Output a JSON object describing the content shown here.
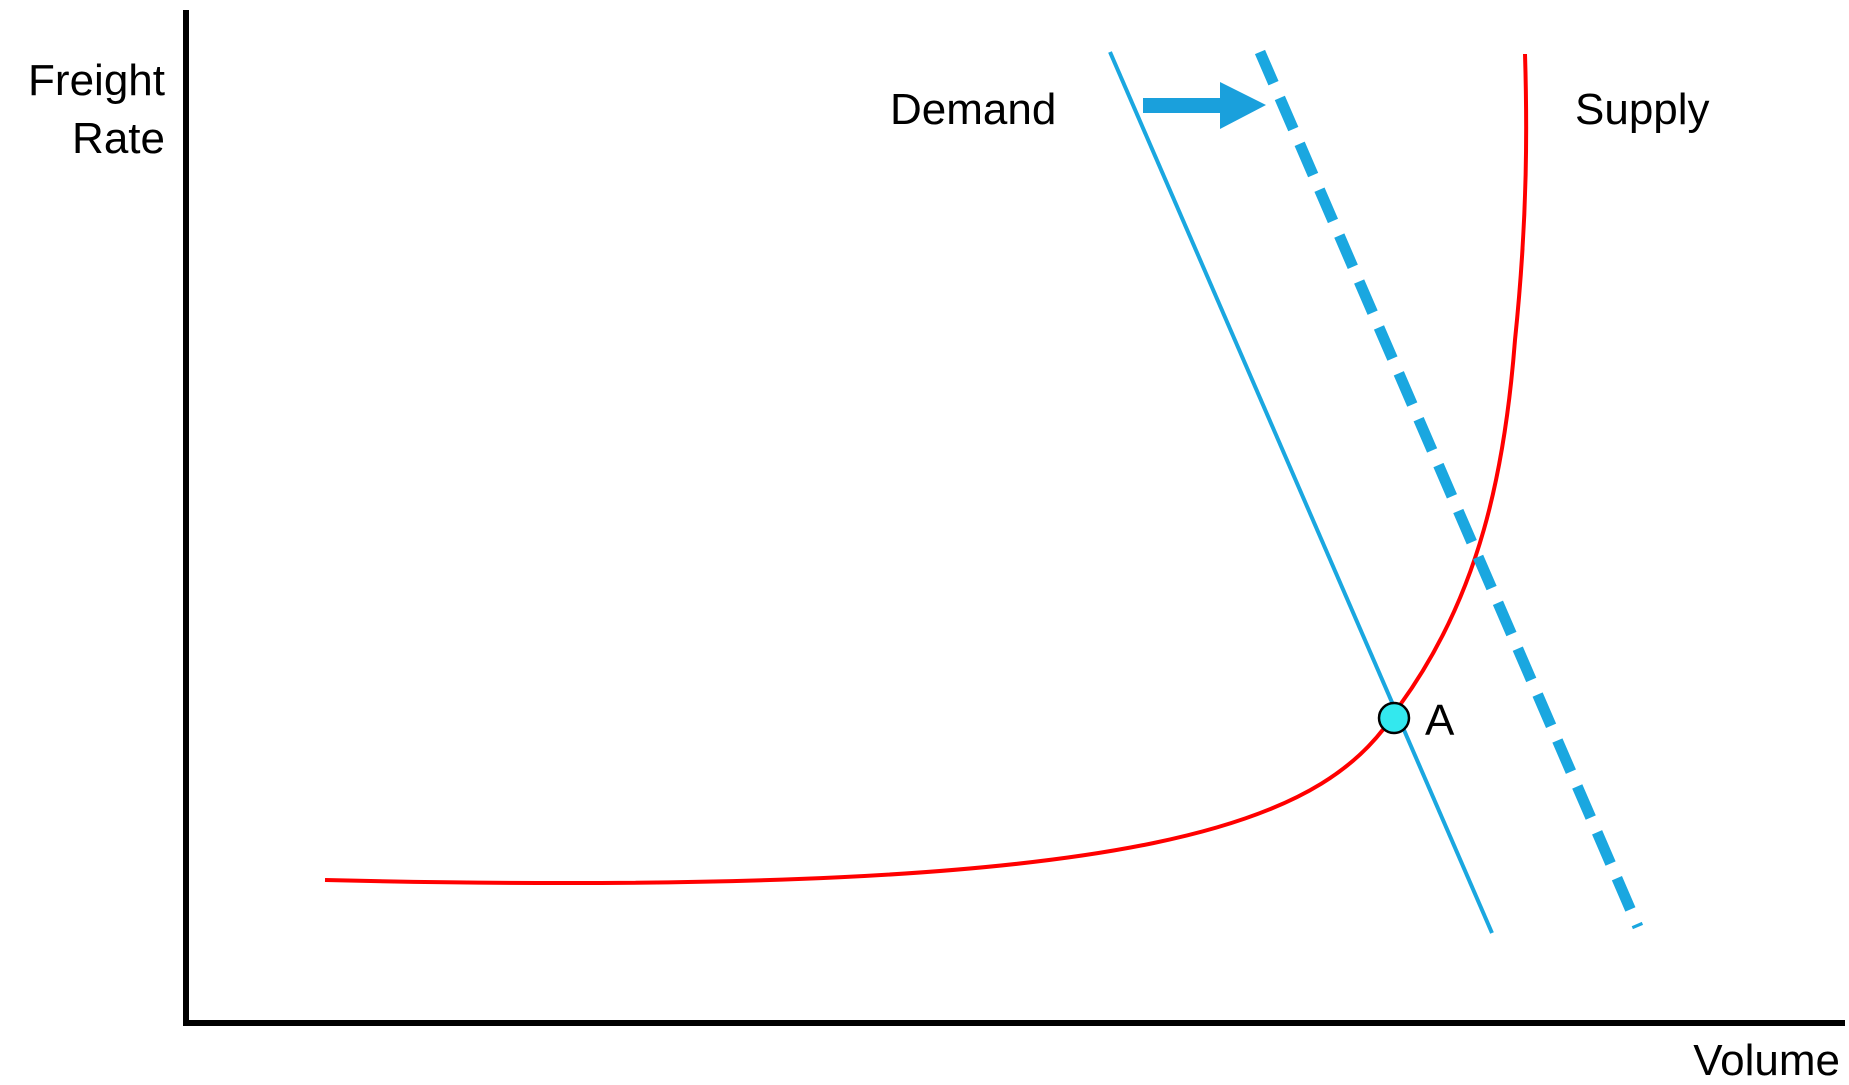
{
  "axes": {
    "y_label_line1": "Freight",
    "y_label_line2": "Rate",
    "x_label": "Volume"
  },
  "curves": {
    "demand": {
      "label": "Demand",
      "color": "#1aa7e0"
    },
    "demand_shifted": {
      "color": "#1aa7e0",
      "style": "dashed"
    },
    "supply": {
      "label": "Supply",
      "color": "#ff0000"
    }
  },
  "shift_arrow": {
    "direction": "right",
    "color": "#1aa0dc"
  },
  "points": [
    {
      "label": "A",
      "fill": "#33e8ee"
    }
  ]
}
